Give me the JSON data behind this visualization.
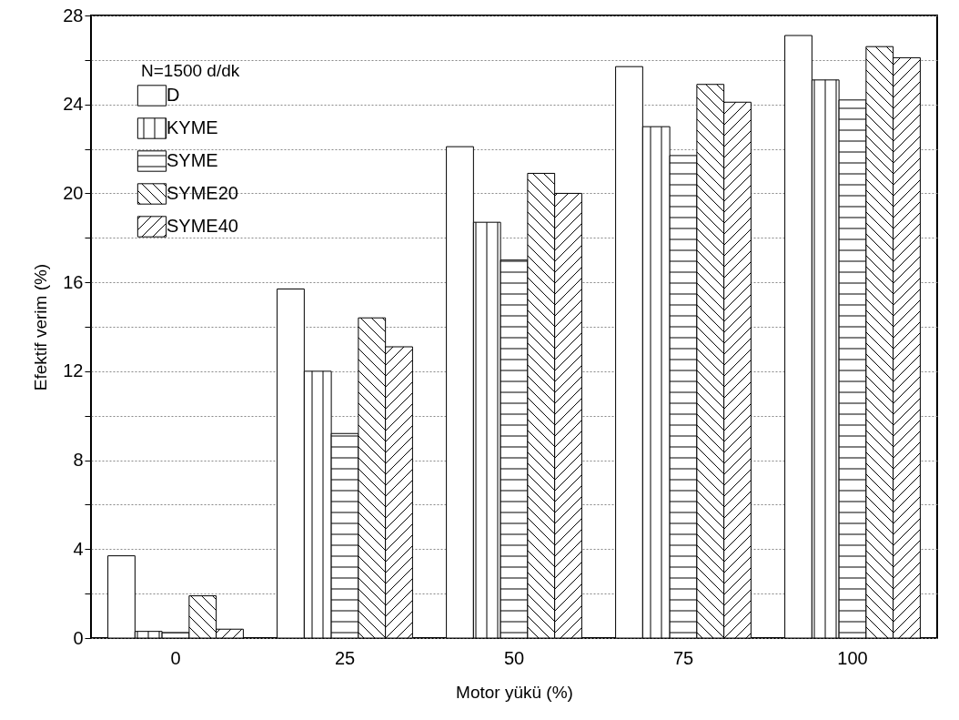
{
  "chart_data": {
    "type": "bar",
    "xlabel": "Motor yükü (%)",
    "ylabel": "Efektif verim (%)",
    "legend_title": "N=1500 d/dk",
    "categories": [
      "0",
      "25",
      "50",
      "75",
      "100"
    ],
    "series": [
      {
        "name": "D",
        "color": "#ffffff",
        "values": [
          3.7,
          15.7,
          22.1,
          25.7,
          27.1
        ]
      },
      {
        "name": "KYME",
        "color": "#ffffff",
        "values": [
          0.3,
          12.0,
          18.7,
          23.0,
          25.1
        ]
      },
      {
        "name": "SYME",
        "color": "#ffffff",
        "values": [
          0.25,
          9.2,
          17.0,
          21.7,
          24.2
        ]
      },
      {
        "name": "SYME20",
        "color": "#ffffff",
        "values": [
          1.9,
          14.4,
          20.9,
          24.9,
          26.6
        ]
      },
      {
        "name": "SYME40",
        "color": "#ffffff",
        "values": [
          0.4,
          13.1,
          20.0,
          24.1,
          26.1
        ]
      }
    ],
    "ylim": [
      0,
      28
    ],
    "yticks": [
      0,
      {
        "value": 2,
        "label": null
      },
      4,
      {
        "value": 6,
        "label": null
      },
      8,
      {
        "value": 10,
        "label": null
      },
      12,
      {
        "value": 14,
        "label": null
      },
      16,
      {
        "value": 18,
        "label": null
      },
      20,
      {
        "value": 22,
        "label": null
      },
      24,
      {
        "value": 26,
        "label": null
      },
      28
    ],
    "grid": "y",
    "legend": "top left"
  }
}
